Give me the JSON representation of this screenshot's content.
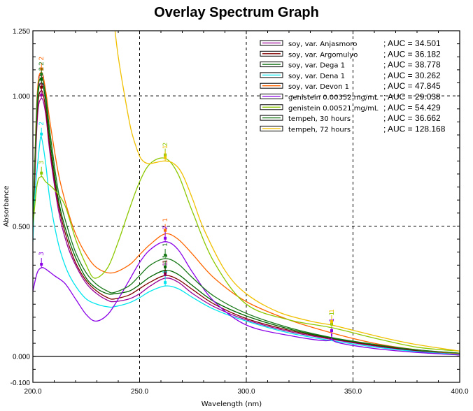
{
  "chart_data": {
    "type": "line",
    "title": "Overlay Spectrum Graph",
    "xlabel": "Wavelength (nm)",
    "ylabel": "Absorbance",
    "xlim": [
      200,
      400
    ],
    "ylim": [
      -0.1,
      1.25
    ],
    "x_ticks": [
      200,
      250,
      300,
      350,
      400
    ],
    "x_tick_labels": [
      "200.0",
      "250.0",
      "300.0",
      "350.0",
      "400.0"
    ],
    "y_ticks": [
      -0.1,
      0.0,
      0.5,
      1.0,
      1.25
    ],
    "y_tick_labels": [
      "-0.100",
      "0.000",
      "0.500",
      "1.000",
      "1.250"
    ],
    "grid": "dashed at x=250,300,350 and y=0.5,1.0",
    "legend_position": "top-right",
    "series": [
      {
        "name": "soy, var. Anjasmoro",
        "auc": "34.501",
        "color": "#990099",
        "x": [
          200,
          202,
          204,
          206,
          208,
          212,
          216,
          220,
          225,
          230,
          235,
          238,
          245,
          250,
          255,
          262,
          268,
          275,
          285,
          300,
          320,
          340,
          360,
          380,
          400
        ],
        "y": [
          0.45,
          0.9,
          0.99,
          0.93,
          0.78,
          0.56,
          0.43,
          0.35,
          0.28,
          0.24,
          0.215,
          0.21,
          0.22,
          0.24,
          0.27,
          0.3,
          0.285,
          0.24,
          0.19,
          0.14,
          0.095,
          0.065,
          0.04,
          0.02,
          0.008
        ],
        "peaks": [
          {
            "label": "2",
            "x": 204,
            "y": 0.99
          },
          {
            "label": "1",
            "x": 262,
            "y": 0.3
          }
        ]
      },
      {
        "name": "soy, var. Argomulyo",
        "auc": "36.182",
        "color": "#800000",
        "x": [
          200,
          202,
          204,
          206,
          208,
          212,
          216,
          220,
          225,
          230,
          235,
          238,
          245,
          250,
          255,
          262,
          268,
          275,
          285,
          300,
          320,
          340,
          360,
          380,
          400
        ],
        "y": [
          0.47,
          0.93,
          1.02,
          0.95,
          0.8,
          0.58,
          0.45,
          0.36,
          0.29,
          0.25,
          0.225,
          0.22,
          0.235,
          0.26,
          0.285,
          0.31,
          0.295,
          0.255,
          0.2,
          0.145,
          0.1,
          0.068,
          0.042,
          0.022,
          0.01
        ],
        "peaks": [
          {
            "label": "2",
            "x": 204,
            "y": 1.02
          },
          {
            "label": "1",
            "x": 262,
            "y": 0.31
          }
        ]
      },
      {
        "name": "soy, var. Dega 1",
        "auc": "38.778",
        "color": "#006400",
        "x": [
          200,
          202,
          204,
          206,
          208,
          212,
          216,
          220,
          225,
          230,
          235,
          238,
          245,
          250,
          255,
          262,
          268,
          275,
          285,
          300,
          320,
          340,
          360,
          380,
          400
        ],
        "y": [
          0.5,
          0.96,
          1.05,
          0.98,
          0.83,
          0.6,
          0.47,
          0.38,
          0.3,
          0.26,
          0.24,
          0.24,
          0.25,
          0.275,
          0.305,
          0.33,
          0.315,
          0.27,
          0.21,
          0.155,
          0.105,
          0.07,
          0.045,
          0.024,
          0.012
        ],
        "peaks": [
          {
            "label": "2",
            "x": 204,
            "y": 1.05
          },
          {
            "label": "1",
            "x": 262,
            "y": 0.33
          }
        ]
      },
      {
        "name": "soy, var. Dena 1",
        "auc": "30.262",
        "color": "#00e5ee",
        "x": [
          200,
          201,
          203,
          204,
          206,
          208,
          212,
          216,
          220,
          225,
          230,
          235,
          238,
          245,
          250,
          255,
          262,
          268,
          275,
          285,
          300,
          320,
          340,
          360,
          380,
          400
        ],
        "y": [
          0.44,
          0.62,
          0.8,
          0.84,
          0.74,
          0.6,
          0.43,
          0.33,
          0.27,
          0.22,
          0.2,
          0.19,
          0.19,
          0.205,
          0.225,
          0.25,
          0.27,
          0.26,
          0.225,
          0.18,
          0.135,
          0.09,
          0.06,
          0.036,
          0.018,
          0.007
        ],
        "peaks": [
          {
            "label": "2",
            "x": 204,
            "y": 0.84
          },
          {
            "label": "1",
            "x": 262,
            "y": 0.27
          }
        ]
      },
      {
        "name": "soy, var. Devon 1",
        "auc": "47.845",
        "color": "#ff6600",
        "x": [
          200,
          202,
          204,
          206,
          208,
          212,
          216,
          220,
          225,
          230,
          237,
          245,
          250,
          255,
          262,
          268,
          275,
          285,
          300,
          320,
          340,
          360,
          380,
          400
        ],
        "y": [
          0.5,
          1.0,
          1.09,
          1.02,
          0.9,
          0.7,
          0.57,
          0.47,
          0.39,
          0.34,
          0.32,
          0.35,
          0.39,
          0.43,
          0.47,
          0.45,
          0.39,
          0.3,
          0.21,
          0.14,
          0.09,
          0.05,
          0.025,
          0.01
        ],
        "peaks": [
          {
            "label": "2",
            "x": 204,
            "y": 1.09
          },
          {
            "label": "1",
            "x": 262,
            "y": 0.47
          }
        ]
      },
      {
        "name": "genistein 0.00352 mg/mL",
        "auc": "29.038",
        "color": "#8a00e6",
        "x": [
          200,
          202,
          204,
          206,
          210,
          215,
          220,
          225,
          229.5,
          235,
          240,
          245,
          250,
          255,
          262,
          268,
          275,
          285,
          300,
          320,
          338,
          340,
          342,
          360,
          380,
          400
        ],
        "y": [
          0.25,
          0.32,
          0.34,
          0.335,
          0.31,
          0.28,
          0.22,
          0.16,
          0.135,
          0.16,
          0.22,
          0.29,
          0.36,
          0.41,
          0.44,
          0.41,
          0.32,
          0.21,
          0.12,
          0.08,
          0.06,
          0.085,
          0.055,
          0.03,
          0.015,
          0.005
        ],
        "peaks": [
          {
            "label": "3",
            "x": 204,
            "y": 0.34
          },
          {
            "label": "2",
            "x": 262,
            "y": 0.44
          },
          {
            "label": "1",
            "x": 340,
            "y": 0.085
          }
        ]
      },
      {
        "name": "genistein 0.00521 mg/mL",
        "auc": "54.429",
        "color": "#8cc800",
        "x": [
          200,
          202,
          204,
          206,
          210,
          215,
          220,
          225,
          229,
          235,
          240,
          245,
          250,
          255,
          262,
          268,
          275,
          285,
          300,
          320,
          340,
          360,
          380,
          400
        ],
        "y": [
          0.5,
          0.66,
          0.69,
          0.67,
          0.64,
          0.58,
          0.45,
          0.35,
          0.3,
          0.34,
          0.44,
          0.56,
          0.67,
          0.74,
          0.76,
          0.7,
          0.55,
          0.36,
          0.2,
          0.14,
          0.11,
          0.07,
          0.035,
          0.02
        ],
        "peaks": [
          {
            "label": "3",
            "x": 204,
            "y": 0.69
          },
          {
            "label": "2",
            "x": 262,
            "y": 0.76
          },
          {
            "label": "1",
            "x": 340,
            "y": 0.11
          }
        ]
      },
      {
        "name": "tempeh, 30 hours",
        "auc": "36.662",
        "color": "#1a7a1a",
        "x": [
          200,
          202,
          204,
          206,
          208,
          212,
          216,
          220,
          225,
          230,
          235,
          238,
          245,
          250,
          255,
          262,
          268,
          275,
          285,
          300,
          320,
          340,
          360,
          380,
          400
        ],
        "y": [
          0.5,
          0.98,
          1.07,
          1.0,
          0.86,
          0.63,
          0.5,
          0.4,
          0.32,
          0.275,
          0.25,
          0.245,
          0.27,
          0.31,
          0.35,
          0.375,
          0.355,
          0.3,
          0.23,
          0.165,
          0.11,
          0.072,
          0.046,
          0.025,
          0.012
        ],
        "peaks": [
          {
            "label": "2",
            "x": 204,
            "y": 1.07
          },
          {
            "label": "1",
            "x": 262,
            "y": 0.375
          }
        ]
      },
      {
        "name": "tempeh, 72 hours",
        "auc": "128.168",
        "color": "#f0c000",
        "x": [
          238.5,
          240,
          243,
          246,
          249,
          251,
          254,
          258,
          262,
          266,
          270,
          275,
          280,
          290,
          300,
          315,
          330,
          340,
          350,
          365,
          380,
          400
        ],
        "y": [
          1.25,
          1.15,
          1.0,
          0.87,
          0.79,
          0.755,
          0.74,
          0.745,
          0.75,
          0.74,
          0.7,
          0.6,
          0.49,
          0.33,
          0.24,
          0.17,
          0.135,
          0.12,
          0.1,
          0.07,
          0.045,
          0.02
        ],
        "peaks": [
          {
            "label": "1",
            "x": 262,
            "y": 0.75
          },
          {
            "label": "1",
            "x": 340,
            "y": 0.12
          }
        ]
      }
    ]
  }
}
